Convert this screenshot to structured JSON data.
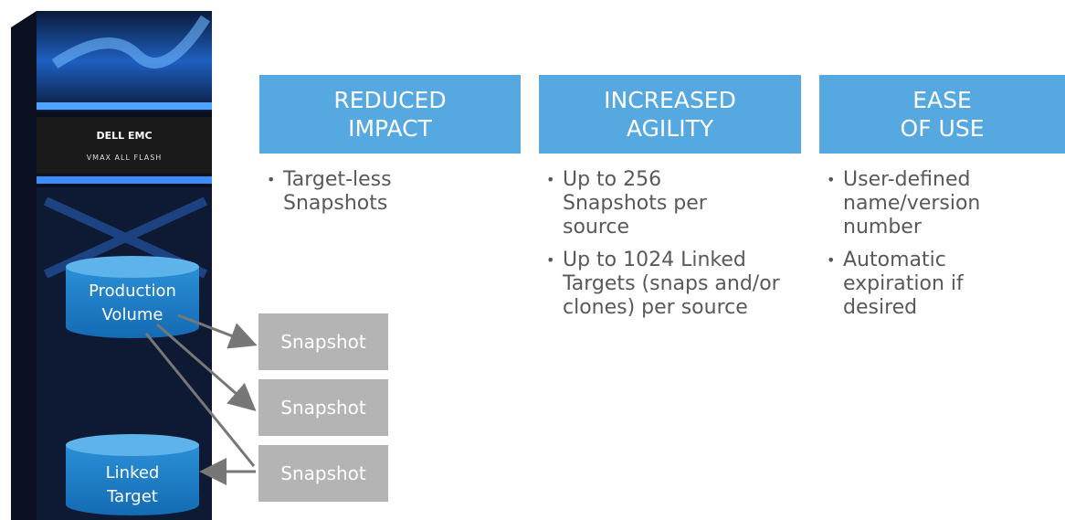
{
  "rack": {
    "brand": "DELL EMC",
    "model": "VMAX ALL FLASH"
  },
  "volumes": {
    "production": "Production Volume",
    "linked": "Linked Target"
  },
  "snapshots": [
    "Snapshot",
    "Snapshot",
    "Snapshot"
  ],
  "columns": [
    {
      "header": [
        "REDUCED",
        "IMPACT"
      ],
      "bullets": [
        "Target-less Snapshots"
      ]
    },
    {
      "header": [
        "INCREASED",
        "AGILITY"
      ],
      "bullets": [
        "Up to 256 Snapshots per source",
        "Up to 1024 Linked Targets (snaps and/or clones) per source"
      ]
    },
    {
      "header": [
        "EASE",
        "OF USE"
      ],
      "bullets": [
        "User-defined name/version number",
        "Automatic expiration if desired"
      ]
    }
  ]
}
